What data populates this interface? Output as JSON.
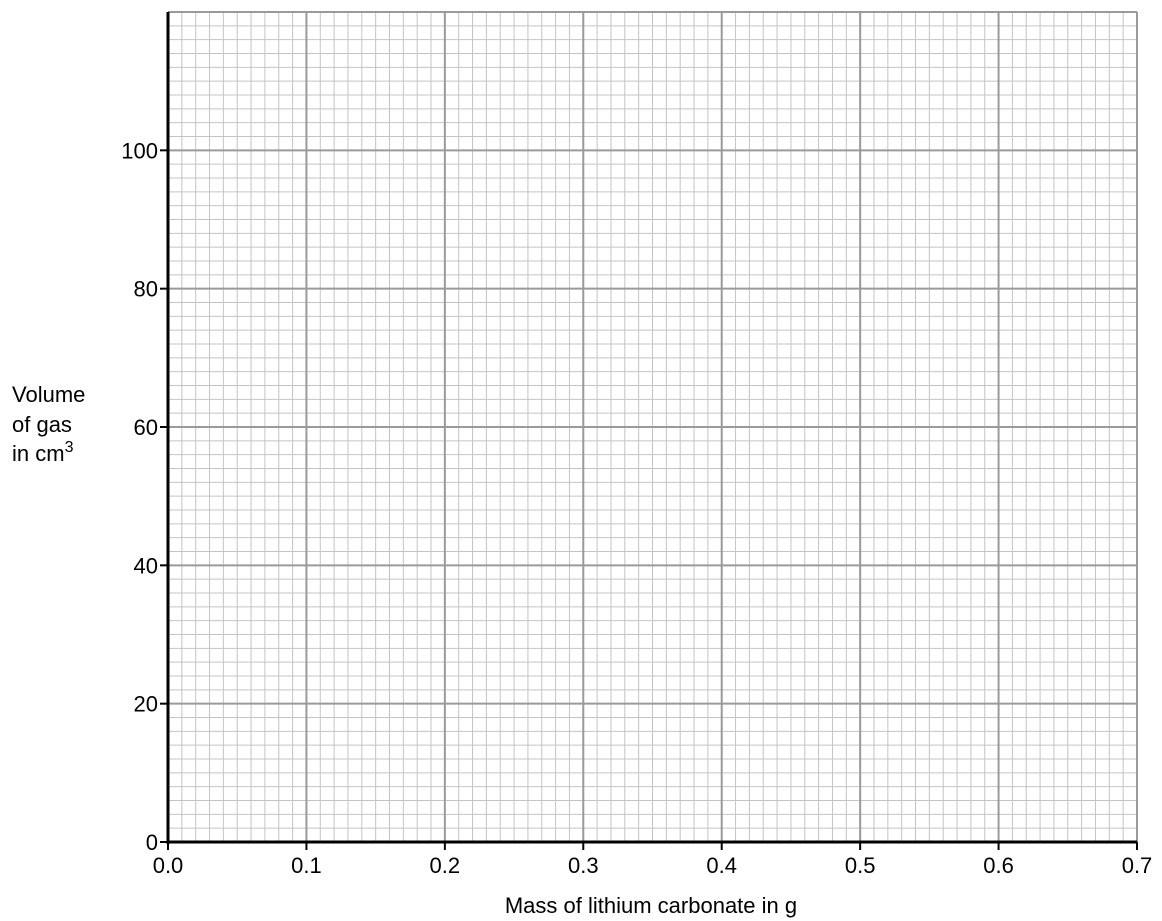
{
  "chart_data": {
    "type": "scatter",
    "title": "",
    "xlabel": "Mass of lithium carbonate in g",
    "ylabel": {
      "lines": [
        "Volume",
        "of gas",
        "in cm"
      ],
      "superscript": "3"
    },
    "xlim": [
      0,
      0.7
    ],
    "ylim": [
      0,
      120
    ],
    "x_ticks": [
      0.0,
      0.1,
      0.2,
      0.3,
      0.4,
      0.5,
      0.6,
      0.7
    ],
    "x_tick_labels": [
      "0.0",
      "0.1",
      "0.2",
      "0.3",
      "0.4",
      "0.5",
      "0.6",
      "0.7"
    ],
    "y_ticks": [
      0,
      20,
      40,
      60,
      80,
      100
    ],
    "y_tick_labels": [
      "0",
      "20",
      "40",
      "60",
      "80",
      "100"
    ],
    "grid": {
      "type": "graph-paper",
      "major_x_step": 0.1,
      "major_y_step": 20,
      "minor_divisions": 10
    },
    "series": [],
    "colors": {
      "minor_grid": "#c4c4c4",
      "major_grid": "#9a9a9a",
      "axis": "#000000"
    }
  }
}
